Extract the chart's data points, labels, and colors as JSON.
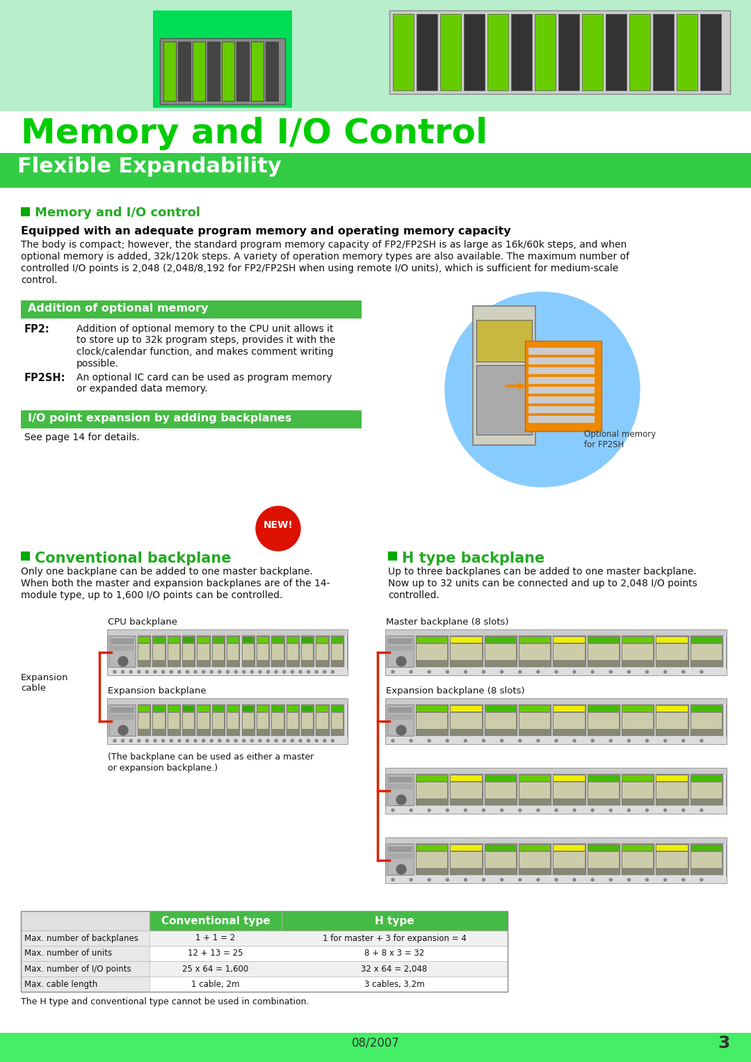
{
  "title_main": "Memory and I/O Control",
  "title_sub": "Flexible Expandability",
  "section1_title": "Memory and I/O control",
  "section1_heading": "Equipped with an adequate program memory and operating memory capacity",
  "section1_body_lines": [
    "The body is compact; however, the standard program memory capacity of FP2/FP2SH is as large as 16k/60k steps, and when",
    "optional memory is added, 32k/120k steps. A variety of operation memory types are also available. The maximum number of",
    "controlled I/O points is 2,048 (2,048/8,192 for FP2/FP2SH when using remote I/O units), which is sufficient for medium-scale",
    "control."
  ],
  "green_bar1_title": "Addition of optional memory",
  "fp2_label": "FP2:",
  "fp2_text_lines": [
    "Addition of optional memory to the CPU unit allows it",
    "to store up to 32k program steps, provides it with the",
    "clock/calendar function, and makes comment writing",
    "possible."
  ],
  "fp2sh_label": "FP2SH:",
  "fp2sh_text_lines": [
    "An optional IC card can be used as program memory",
    "or expanded data memory."
  ],
  "green_bar2_title": "I/O point expansion by adding backplanes",
  "see_page": "See page 14 for details.",
  "conv_title": "Conventional backplane",
  "conv_body_lines": [
    "Only one backplane can be added to one master backplane.",
    "When both the master and expansion backplanes are of the 14-",
    "module type, up to 1,600 I/O points can be controlled."
  ],
  "htype_title": "H type backplane",
  "htype_body_lines": [
    "Up to three backplanes can be added to one master backplane.",
    "Now up to 32 units can be connected and up to 2,048 I/O points",
    "controlled."
  ],
  "cpu_bp_label": "CPU backplane",
  "expansion_cable": "Expansion\ncable",
  "expansion_bp_label": "Expansion backplane",
  "bp_note_lines": [
    "(The backplane can be used as either a master",
    "or expansion backplane.)"
  ],
  "master_bp_label": "Master backplane (8 slots)",
  "expansion_bp_label2": "Expansion backplane (8 slots)",
  "optional_memory_label": "Optional memory\nfor FP2SH",
  "table_headers": [
    "",
    "Conventional type",
    "H type"
  ],
  "table_rows": [
    [
      "Max. number of backplanes",
      "1 + 1 = 2",
      "1 for master + 3 for expansion = 4"
    ],
    [
      "Max. number of units",
      "12 + 13 = 25",
      "8 + 8 x 3 = 32"
    ],
    [
      "Max. number of I/O points",
      "25 x 64 = 1,600",
      "32 x 64 = 2,048"
    ],
    [
      "Max. cable length",
      "1 cable, 2m",
      "3 cables, 3.2m"
    ]
  ],
  "table_note": "The H type and conventional type cannot be used in combination.",
  "footer_date": "08/2007",
  "footer_page": "3",
  "header_bg_color": "#b8eecc",
  "green_bright": "#00ee44",
  "green_bar": "#33cc44",
  "green_title": "#00cc00",
  "green_section": "#22aa22",
  "green_sq": "#00aa00",
  "color_white": "#ffffff",
  "color_black": "#000000",
  "color_bg": "#ffffff",
  "table_green": "#44bb44",
  "footer_green": "#44ee66"
}
